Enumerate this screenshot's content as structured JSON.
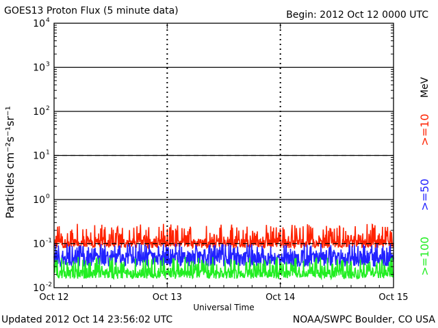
{
  "header": {
    "title": "GOES13 Proton Flux (5 minute data)",
    "begin": "Begin: 2012 Oct 12 0000 UTC"
  },
  "footer": {
    "updated": "Updated 2012 Oct 14 23:56:02 UTC",
    "source": "NOAA/SWPC Boulder, CO USA"
  },
  "chart_data": {
    "type": "line",
    "title": "GOES13 Proton Flux (5 minute data)",
    "xlabel": "Universal Time",
    "ylabel": "Particles cm⁻²s⁻¹sr⁻¹",
    "y_scale": "log",
    "ylim": [
      0.01,
      10000
    ],
    "x_ticks": [
      "Oct 12",
      "Oct 13",
      "Oct 14",
      "Oct 15"
    ],
    "y_ticks": [
      {
        "base": "10",
        "exp": "-2"
      },
      {
        "base": "10",
        "exp": "-1"
      },
      {
        "base": "10",
        "exp": "0"
      },
      {
        "base": "10",
        "exp": "1"
      },
      {
        "base": "10",
        "exp": "2"
      },
      {
        "base": "10",
        "exp": "3"
      },
      {
        "base": "10",
        "exp": "4"
      }
    ],
    "threshold_lines": [
      1,
      10,
      100,
      1000
    ],
    "unit_label": "MeV",
    "series": [
      {
        "name": ">=10",
        "color": "#ff2200",
        "typical": 0.11,
        "min": 0.08,
        "max": 0.28
      },
      {
        "name": ">=50",
        "color": "#2222ff",
        "typical": 0.05,
        "min": 0.03,
        "max": 0.1
      },
      {
        "name": ">=100",
        "color": "#22ee22",
        "typical": 0.022,
        "min": 0.016,
        "max": 0.05
      }
    ]
  }
}
